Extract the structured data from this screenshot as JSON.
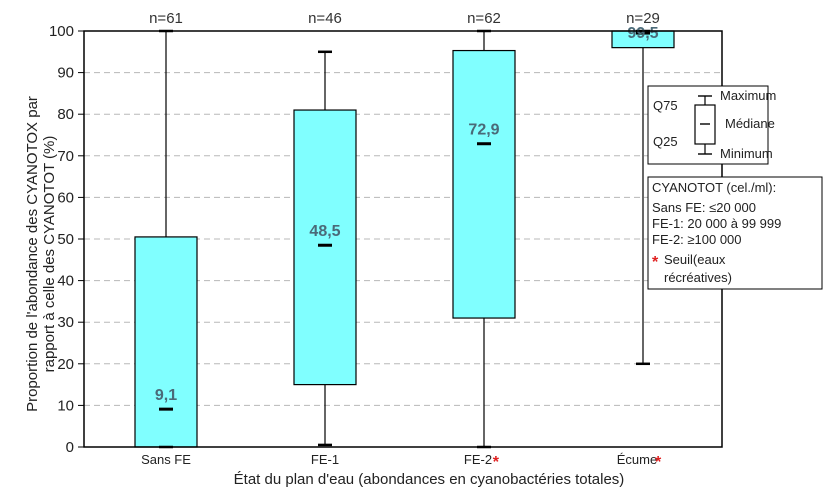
{
  "chart_data": {
    "type": "box",
    "ylabel_line1": "Proportion de l'abondance des CYANOTOX par",
    "ylabel_line2": "rapport à celle des CYANOTOT (%)",
    "xlabel": "État du plan d'eau (abondances en cyanobactéries totales)",
    "ylim": [
      0,
      100
    ],
    "yticks": [
      0,
      10,
      20,
      30,
      40,
      50,
      60,
      70,
      80,
      90,
      100
    ],
    "grid": true,
    "box_color": "#80ffff",
    "asterisk_color": "#e02020",
    "categories": [
      {
        "label": "Sans FE",
        "n_label": "n=61",
        "min": 0,
        "q25": 0,
        "median": 9.1,
        "median_label": "9,1",
        "q75": 50.5,
        "max": 100,
        "asterisk": false
      },
      {
        "label": "FE-1",
        "n_label": "n=46",
        "min": 0.5,
        "q25": 15,
        "median": 48.5,
        "median_label": "48,5",
        "q75": 81,
        "max": 95,
        "asterisk": false
      },
      {
        "label": "FE-2",
        "n_label": "n=62",
        "min": 0,
        "q25": 31,
        "median": 72.9,
        "median_label": "72,9",
        "q75": 95.3,
        "max": 100,
        "asterisk": true
      },
      {
        "label": "Écume",
        "n_label": "n=29",
        "min": 20,
        "q25": 96,
        "median": 99.5,
        "median_label": "99,5",
        "q75": 100,
        "max": 100,
        "asterisk": true
      }
    ]
  },
  "legend": {
    "key": {
      "maximum": "Maximum",
      "q75": "Q75",
      "mediane": "Médiane",
      "q25": "Q25",
      "minimum": "Minimum"
    },
    "info": {
      "title": "CYANOTOT (cel./ml):",
      "lines": [
        "Sans FE: ≤20 000",
        "FE-1: 20 000 à 99 999",
        "FE-2: ≥100 000"
      ],
      "seuil_line1": "Seuil(eaux",
      "seuil_line2": "récréatives)"
    }
  }
}
